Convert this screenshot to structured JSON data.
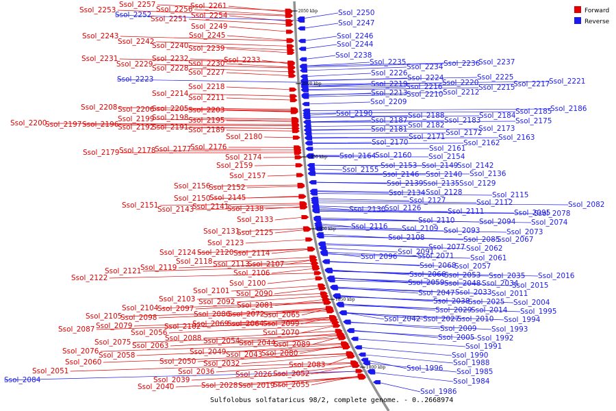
{
  "colors": {
    "forward": "#e00000",
    "reverse": "#1a1aee",
    "backbone": "#909090"
  },
  "legend": {
    "forward_label": "Forward",
    "reverse_label": "Reverse"
  },
  "caption": "Sulfolobus solfataricus 98/2, complete genome. - 0..2668974",
  "ticks": [
    "2050 kbp",
    "2000 kbp",
    "1950 kbp",
    "1900 kbp",
    "1850 kbp",
    "1800 kbp"
  ],
  "forward_genes": [
    "Ssol_2261",
    "Ssol_2257",
    "Ssol_2253",
    "Ssol_2256",
    "Ssol_2254",
    "Ssol_2251",
    "Ssol_2249",
    "Ssol_2245",
    "Ssol_2243",
    "Ssol_2242",
    "Ssol_2240",
    "Ssol_2239",
    "Ssol_2233",
    "Ssol_2231",
    "Ssol_2232",
    "Ssol_2230",
    "Ssol_2229",
    "Ssol_2228",
    "Ssol_2227",
    "Ssol_2218",
    "Ssol_2214",
    "Ssol_2211",
    "Ssol_2208",
    "Ssol_2206",
    "Ssol_2205",
    "Ssol_2203",
    "Ssol_2199",
    "Ssol_2198",
    "Ssol_2195",
    "Ssol_2200",
    "Ssol_2197",
    "Ssol_2196",
    "Ssol_2192",
    "Ssol_2191",
    "Ssol_2189",
    "Ssol_2180",
    "Ssol_2179",
    "Ssol_2178",
    "Ssol_2177",
    "Ssol_2176",
    "Ssol_2174",
    "Ssol_2159",
    "Ssol_2157",
    "Ssol_2156",
    "Ssol_2152",
    "Ssol_2150",
    "Ssol_2145",
    "Ssol_2151",
    "Ssol_2143",
    "Ssol_2141",
    "Ssol_2138",
    "Ssol_2133",
    "Ssol_2131",
    "Ssol_2125",
    "Ssol_2123",
    "Ssol_2124",
    "Ssol_2120",
    "Ssol_2114",
    "Ssol_2118",
    "Ssol_2113",
    "Ssol_2107",
    "Ssol_2121",
    "Ssol_2119",
    "Ssol_2122",
    "Ssol_2106",
    "Ssol_2101",
    "Ssol_2100",
    "Ssol_2103",
    "Ssol_2090",
    "Ssol_2092",
    "Ssol_2081",
    "Ssol_2104",
    "Ssol_2097",
    "Ssol_2105",
    "Ssol_2098",
    "Ssol_2086",
    "Ssol_2072",
    "Ssol_2065",
    "Ssol_2069",
    "Ssol_2064",
    "Ssol_2099",
    "Ssol_2079",
    "Ssol_2102",
    "Ssol_2087",
    "Ssol_2056",
    "Ssol_2070",
    "Ssol_2088",
    "Ssol_2075",
    "Ssol_2063",
    "Ssol_2054",
    "Ssol_2044",
    "Ssol_2089",
    "Ssol_2076",
    "Ssol_2058",
    "Ssol_2049",
    "Ssol_2043",
    "Ssol_2080",
    "Ssol_2060",
    "Ssol_2050",
    "Ssol_2032",
    "Ssol_2083",
    "Ssol_2051",
    "Ssol_2036",
    "Ssol_2026",
    "Ssol_2052",
    "Ssol_2039",
    "Ssol_2028",
    "Ssol_2019",
    "Ssol_2055",
    "Ssol_2040"
  ],
  "reverse_genes": [
    "Ssol_2084",
    "Ssol_2252",
    "Ssol_2223",
    "Ssol_2250",
    "Ssol_2247",
    "Ssol_2246",
    "Ssol_2244",
    "Ssol_2238",
    "Ssol_2235",
    "Ssol_2234",
    "Ssol_2236",
    "Ssol_2237",
    "Ssol_2226",
    "Ssol_2224",
    "Ssol_2225",
    "Ssol_2219",
    "Ssol_2216",
    "Ssol_2220",
    "Ssol_2215",
    "Ssol_2217",
    "Ssol_2221",
    "Ssol_2213",
    "Ssol_2210",
    "Ssol_2212",
    "Ssol_2209",
    "Ssol_2190",
    "Ssol_2188",
    "Ssol_2183",
    "Ssol_2184",
    "Ssol_2185",
    "Ssol_2186",
    "Ssol_2187",
    "Ssol_2182",
    "Ssol_2175",
    "Ssol_2181",
    "Ssol_2173",
    "Ssol_2172",
    "Ssol_2171",
    "Ssol_2163",
    "Ssol_2170",
    "Ssol_2162",
    "Ssol_2161",
    "Ssol_2164",
    "Ssol_2160",
    "Ssol_2154",
    "Ssol_2153",
    "Ssol_2149",
    "Ssol_2142",
    "Ssol_2155",
    "Ssol_2146",
    "Ssol_2140",
    "Ssol_2136",
    "Ssol_2139",
    "Ssol_2135",
    "Ssol_2129",
    "Ssol_2134",
    "Ssol_2128",
    "Ssol_2115",
    "Ssol_2127",
    "Ssol_2112",
    "Ssol_2130",
    "Ssol_2126",
    "Ssol_2111",
    "Ssol_2082",
    "Ssol_2078",
    "Ssol_2110",
    "Ssol_2095",
    "Ssol_2094",
    "Ssol_2074",
    "Ssol_2116",
    "Ssol_2109",
    "Ssol_2093",
    "Ssol_2073",
    "Ssol_2108",
    "Ssol_2085",
    "Ssol_2067",
    "Ssol_2062",
    "Ssol_2091",
    "Ssol_2077",
    "Ssol_2096",
    "Ssol_2071",
    "Ssol_2061",
    "Ssol_2068",
    "Ssol_2057",
    "Ssol_2066",
    "Ssol_2053",
    "Ssol_2035",
    "Ssol_2016",
    "Ssol_2059",
    "Ssol_2048",
    "Ssol_2034",
    "Ssol_2015",
    "Ssol_2047",
    "Ssol_2033",
    "Ssol_2011",
    "Ssol_2038",
    "Ssol_2025",
    "Ssol_2004",
    "Ssol_2029",
    "Ssol_2014",
    "Ssol_1995",
    "Ssol_2042",
    "Ssol_2027",
    "Ssol_2010",
    "Ssol_1994",
    "Ssol_2009",
    "Ssol_1993",
    "Ssol_2005",
    "Ssol_1992",
    "Ssol_1991",
    "Ssol_1990",
    "Ssol_1996",
    "Ssol_1988",
    "Ssol_1985",
    "Ssol_1984",
    "Ssol_1986"
  ]
}
